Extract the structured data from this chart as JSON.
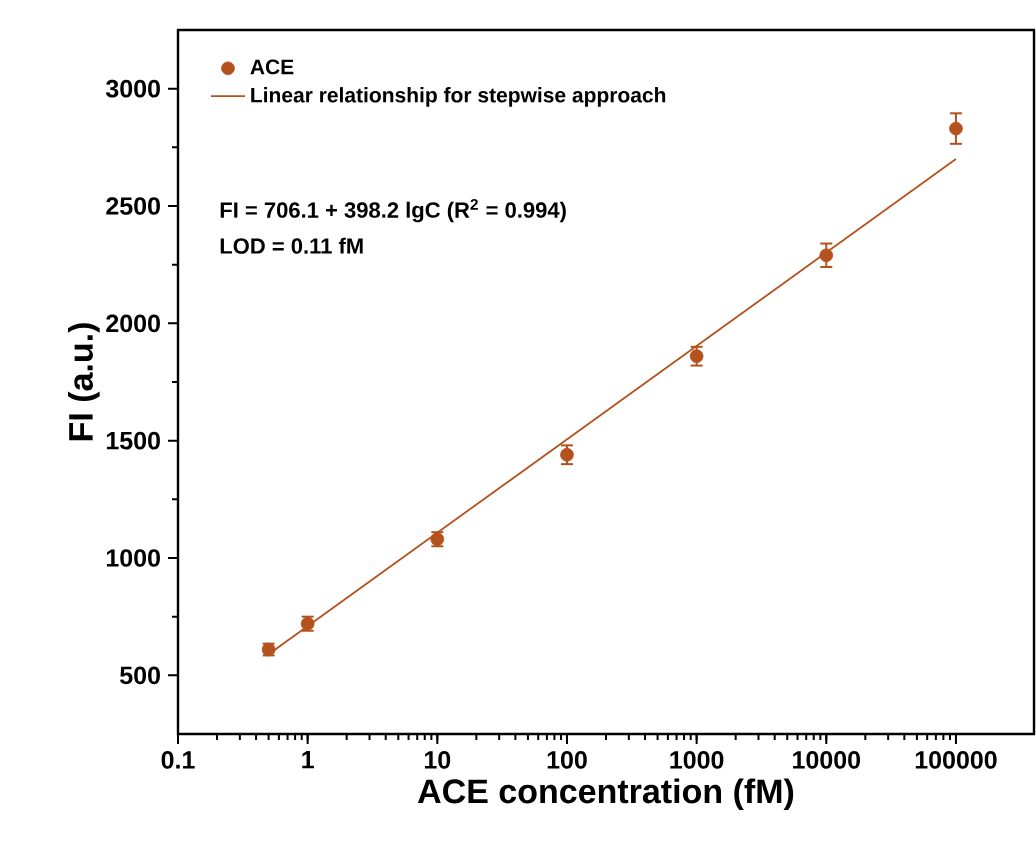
{
  "chart_data": {
    "type": "scatter",
    "xlabel": "ACE concentration (fM)",
    "ylabel": "FI (a.u.)",
    "log": "x",
    "xlim": [
      0.1,
      400000
    ],
    "ylim": [
      250,
      3250
    ],
    "xticks": [
      0.1,
      1,
      10,
      100,
      1000,
      10000,
      100000
    ],
    "yticks": [
      500,
      1000,
      1500,
      2000,
      2500,
      3000
    ],
    "grid": false,
    "legend": "top left",
    "marker": "circle",
    "series": [
      {
        "name": "ACE",
        "color": "#b4511c",
        "x": [
          0.5,
          1,
          10,
          100,
          1000,
          10000,
          100000
        ],
        "values": [
          610,
          720,
          1080,
          1440,
          1860,
          2290,
          2830
        ],
        "errors": [
          25,
          30,
          30,
          40,
          40,
          50,
          65
        ]
      },
      {
        "name": "Linear relationship for stepwise approach",
        "type": "line",
        "marker": "none",
        "color": "#b4511c",
        "x": [
          0.5,
          100000
        ],
        "values": [
          590,
          2700
        ]
      }
    ],
    "annotations": [
      "FI = 706.1 + 398.2 lgC (R$^{2}$ = 0.994)",
      "LOD = 0.11 fM"
    ]
  }
}
